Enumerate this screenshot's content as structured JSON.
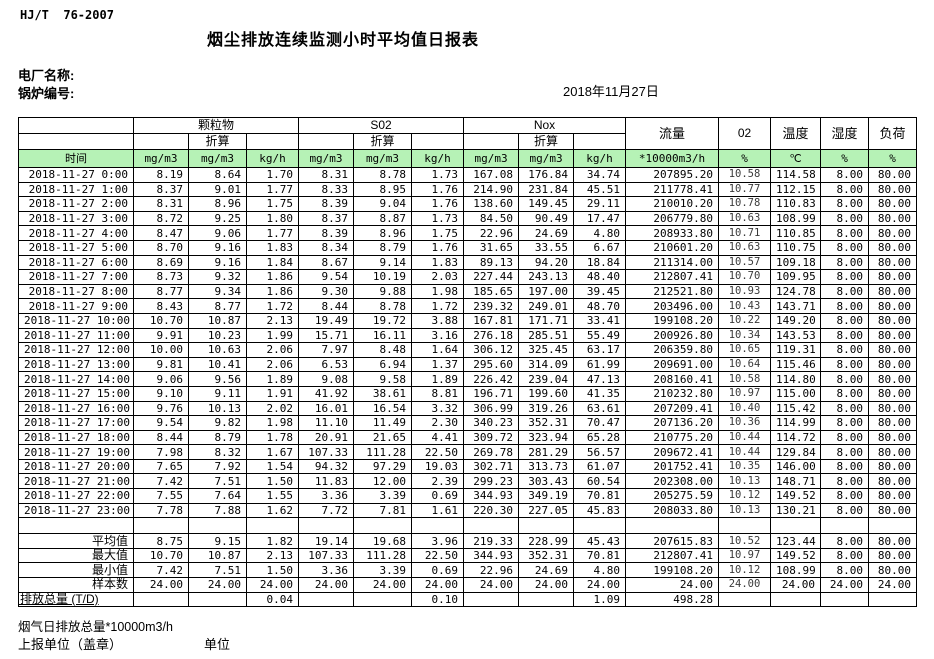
{
  "colors": {
    "header_green": "#b6f2b6"
  },
  "page": {
    "standard_no": "HJ/T  76-2007",
    "title": "烟尘排放连续监测小时平均值日报表",
    "plant_label": "电厂名称:",
    "boiler_label": "锅炉编号:",
    "date": "2018年11月27日"
  },
  "table": {
    "time_header": "时间",
    "group_pm": "颗粒物",
    "group_so2": "S02",
    "group_nox": "Nox",
    "converted": "折算",
    "col_flow": "流量",
    "col_o2": "02",
    "col_temp": "温度",
    "col_humidity": "湿度",
    "col_load": "负荷",
    "units": [
      "mg/m3",
      "mg/m3",
      "kg/h",
      "mg/m3",
      "mg/m3",
      "kg/h",
      "mg/m3",
      "mg/m3",
      "kg/h",
      "*10000m3/h",
      "%",
      "℃",
      "%",
      "%"
    ],
    "rows": [
      {
        "time": "2018-11-27 0:00",
        "values": [
          "8.19",
          "8.64",
          "1.70",
          "8.31",
          "8.78",
          "1.73",
          "167.08",
          "176.84",
          "34.74",
          "207895.20",
          "10.58",
          "114.58",
          "8.00",
          "80.00"
        ]
      },
      {
        "time": "2018-11-27 1:00",
        "values": [
          "8.37",
          "9.01",
          "1.77",
          "8.33",
          "8.95",
          "1.76",
          "214.90",
          "231.84",
          "45.51",
          "211778.41",
          "10.77",
          "112.15",
          "8.00",
          "80.00"
        ]
      },
      {
        "time": "2018-11-27 2:00",
        "values": [
          "8.31",
          "8.96",
          "1.75",
          "8.39",
          "9.04",
          "1.76",
          "138.60",
          "149.45",
          "29.11",
          "210010.20",
          "10.78",
          "110.83",
          "8.00",
          "80.00"
        ]
      },
      {
        "time": "2018-11-27 3:00",
        "values": [
          "8.72",
          "9.25",
          "1.80",
          "8.37",
          "8.87",
          "1.73",
          "84.50",
          "90.49",
          "17.47",
          "206779.80",
          "10.63",
          "108.99",
          "8.00",
          "80.00"
        ]
      },
      {
        "time": "2018-11-27 4:00",
        "values": [
          "8.47",
          "9.06",
          "1.77",
          "8.39",
          "8.96",
          "1.75",
          "22.96",
          "24.69",
          "4.80",
          "208933.80",
          "10.71",
          "110.85",
          "8.00",
          "80.00"
        ]
      },
      {
        "time": "2018-11-27 5:00",
        "values": [
          "8.70",
          "9.16",
          "1.83",
          "8.34",
          "8.79",
          "1.76",
          "31.65",
          "33.55",
          "6.67",
          "210601.20",
          "10.63",
          "110.75",
          "8.00",
          "80.00"
        ]
      },
      {
        "time": "2018-11-27 6:00",
        "values": [
          "8.69",
          "9.16",
          "1.84",
          "8.67",
          "9.14",
          "1.83",
          "89.13",
          "94.20",
          "18.84",
          "211314.00",
          "10.57",
          "109.18",
          "8.00",
          "80.00"
        ]
      },
      {
        "time": "2018-11-27 7:00",
        "values": [
          "8.73",
          "9.32",
          "1.86",
          "9.54",
          "10.19",
          "2.03",
          "227.44",
          "243.13",
          "48.40",
          "212807.41",
          "10.70",
          "109.95",
          "8.00",
          "80.00"
        ]
      },
      {
        "time": "2018-11-27 8:00",
        "values": [
          "8.77",
          "9.34",
          "1.86",
          "9.30",
          "9.88",
          "1.98",
          "185.65",
          "197.00",
          "39.45",
          "212521.80",
          "10.93",
          "124.78",
          "8.00",
          "80.00"
        ]
      },
      {
        "time": "2018-11-27 9:00",
        "values": [
          "8.43",
          "8.77",
          "1.72",
          "8.44",
          "8.78",
          "1.72",
          "239.32",
          "249.01",
          "48.70",
          "203496.00",
          "10.43",
          "143.71",
          "8.00",
          "80.00"
        ]
      },
      {
        "time": "2018-11-27 10:00",
        "values": [
          "10.70",
          "10.87",
          "2.13",
          "19.49",
          "19.72",
          "3.88",
          "167.81",
          "171.71",
          "33.41",
          "199108.20",
          "10.22",
          "149.20",
          "8.00",
          "80.00"
        ]
      },
      {
        "time": "2018-11-27 11:00",
        "values": [
          "9.91",
          "10.23",
          "1.99",
          "15.71",
          "16.11",
          "3.16",
          "276.18",
          "285.51",
          "55.49",
          "200926.80",
          "10.34",
          "143.53",
          "8.00",
          "80.00"
        ]
      },
      {
        "time": "2018-11-27 12:00",
        "values": [
          "10.00",
          "10.63",
          "2.06",
          "7.97",
          "8.48",
          "1.64",
          "306.12",
          "325.45",
          "63.17",
          "206359.80",
          "10.65",
          "119.31",
          "8.00",
          "80.00"
        ]
      },
      {
        "time": "2018-11-27 13:00",
        "values": [
          "9.81",
          "10.41",
          "2.06",
          "6.53",
          "6.94",
          "1.37",
          "295.60",
          "314.09",
          "61.99",
          "209691.00",
          "10.64",
          "115.46",
          "8.00",
          "80.00"
        ]
      },
      {
        "time": "2018-11-27 14:00",
        "values": [
          "9.06",
          "9.56",
          "1.89",
          "9.08",
          "9.58",
          "1.89",
          "226.42",
          "239.04",
          "47.13",
          "208160.41",
          "10.58",
          "114.80",
          "8.00",
          "80.00"
        ]
      },
      {
        "time": "2018-11-27 15:00",
        "values": [
          "9.10",
          "9.11",
          "1.91",
          "41.92",
          "38.61",
          "8.81",
          "196.71",
          "199.60",
          "41.35",
          "210232.80",
          "10.97",
          "115.00",
          "8.00",
          "80.00"
        ]
      },
      {
        "time": "2018-11-27 16:00",
        "values": [
          "9.76",
          "10.13",
          "2.02",
          "16.01",
          "16.54",
          "3.32",
          "306.99",
          "319.26",
          "63.61",
          "207209.41",
          "10.40",
          "115.42",
          "8.00",
          "80.00"
        ]
      },
      {
        "time": "2018-11-27 17:00",
        "values": [
          "9.54",
          "9.82",
          "1.98",
          "11.10",
          "11.49",
          "2.30",
          "340.23",
          "352.31",
          "70.47",
          "207136.20",
          "10.36",
          "114.99",
          "8.00",
          "80.00"
        ]
      },
      {
        "time": "2018-11-27 18:00",
        "values": [
          "8.44",
          "8.79",
          "1.78",
          "20.91",
          "21.65",
          "4.41",
          "309.72",
          "323.94",
          "65.28",
          "210775.20",
          "10.44",
          "114.72",
          "8.00",
          "80.00"
        ]
      },
      {
        "time": "2018-11-27 19:00",
        "values": [
          "7.98",
          "8.32",
          "1.67",
          "107.33",
          "111.28",
          "22.50",
          "269.78",
          "281.29",
          "56.57",
          "209672.41",
          "10.44",
          "129.84",
          "8.00",
          "80.00"
        ]
      },
      {
        "time": "2018-11-27 20:00",
        "values": [
          "7.65",
          "7.92",
          "1.54",
          "94.32",
          "97.29",
          "19.03",
          "302.71",
          "313.73",
          "61.07",
          "201752.41",
          "10.35",
          "146.00",
          "8.00",
          "80.00"
        ]
      },
      {
        "time": "2018-11-27 21:00",
        "values": [
          "7.42",
          "7.51",
          "1.50",
          "11.83",
          "12.00",
          "2.39",
          "299.23",
          "303.43",
          "60.54",
          "202308.00",
          "10.13",
          "148.71",
          "8.00",
          "80.00"
        ]
      },
      {
        "time": "2018-11-27 22:00",
        "values": [
          "7.55",
          "7.64",
          "1.55",
          "3.36",
          "3.39",
          "0.69",
          "344.93",
          "349.19",
          "70.81",
          "205275.59",
          "10.12",
          "149.52",
          "8.00",
          "80.00"
        ]
      },
      {
        "time": "2018-11-27 23:00",
        "values": [
          "7.78",
          "7.88",
          "1.62",
          "7.72",
          "7.81",
          "1.61",
          "220.30",
          "227.05",
          "45.83",
          "208033.80",
          "10.13",
          "130.21",
          "8.00",
          "80.00"
        ]
      }
    ],
    "summary": [
      {
        "label": "平均值",
        "values": [
          "8.75",
          "9.15",
          "1.82",
          "19.14",
          "19.68",
          "3.96",
          "219.33",
          "228.99",
          "45.43",
          "207615.83",
          "10.52",
          "123.44",
          "8.00",
          "80.00"
        ]
      },
      {
        "label": "最大值",
        "values": [
          "10.70",
          "10.87",
          "2.13",
          "107.33",
          "111.28",
          "22.50",
          "344.93",
          "352.31",
          "70.81",
          "212807.41",
          "10.97",
          "149.52",
          "8.00",
          "80.00"
        ]
      },
      {
        "label": "最小值",
        "values": [
          "7.42",
          "7.51",
          "1.50",
          "3.36",
          "3.39",
          "0.69",
          "22.96",
          "24.69",
          "4.80",
          "199108.20",
          "10.12",
          "108.99",
          "8.00",
          "80.00"
        ]
      },
      {
        "label": "样本数",
        "values": [
          "24.00",
          "24.00",
          "24.00",
          "24.00",
          "24.00",
          "24.00",
          "24.00",
          "24.00",
          "24.00",
          "24.00",
          "24.00",
          "24.00",
          "24.00",
          "24.00"
        ]
      },
      {
        "label": "日排放总量 (T/D)",
        "total_row": true,
        "values": [
          "",
          "",
          "0.04",
          "",
          "",
          "0.10",
          "",
          "",
          "1.09",
          "498.28",
          "",
          "",
          "",
          ""
        ]
      }
    ]
  },
  "footer": {
    "daily_flow_total": "烟气日排放总量*10000m3/h",
    "report_unit_label": "上报单位（盖章）",
    "unit_label": "单位"
  }
}
